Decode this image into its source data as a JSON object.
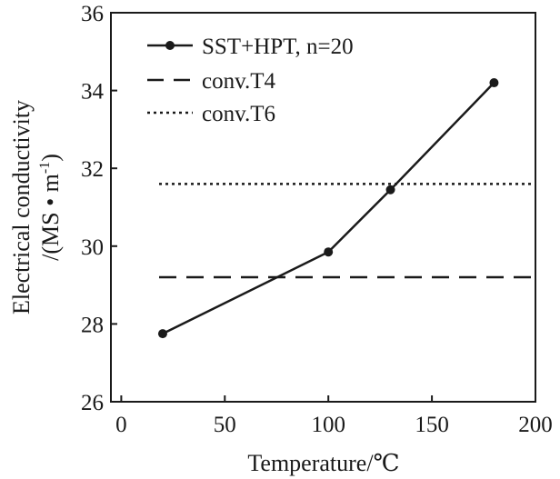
{
  "chart_data": {
    "type": "line",
    "xlabel": "Temperature/℃",
    "ylabel_line1": "Electrical conductivity",
    "ylabel_line2": "/(MS • m",
    "ylabel_sup": "-1",
    "ylabel_close": ")",
    "xlim": [
      -5,
      200
    ],
    "ylim": [
      26,
      36
    ],
    "xticks": [
      0,
      50,
      100,
      150,
      200
    ],
    "yticks": [
      26,
      28,
      30,
      32,
      34,
      36
    ],
    "xtick_labels": [
      "0",
      "50",
      "100",
      "150",
      "200"
    ],
    "ytick_labels": [
      "26",
      "28",
      "30",
      "32",
      "34",
      "36"
    ],
    "grid": false,
    "legend_position": "top-left",
    "series": [
      {
        "name": "SST+HPT, n=20",
        "style": "solid-with-circle-markers",
        "color": "#1a1a1a",
        "x": [
          20,
          100,
          130,
          180
        ],
        "y": [
          27.75,
          29.85,
          31.45,
          34.2
        ]
      },
      {
        "name": "conv.T4",
        "style": "dashed",
        "color": "#1a1a1a",
        "x": [
          0,
          200
        ],
        "y": [
          29.2,
          29.2
        ]
      },
      {
        "name": "conv.T6",
        "style": "dotted",
        "color": "#1a1a1a",
        "x": [
          0,
          200
        ],
        "y": [
          31.6,
          31.6
        ]
      }
    ]
  }
}
